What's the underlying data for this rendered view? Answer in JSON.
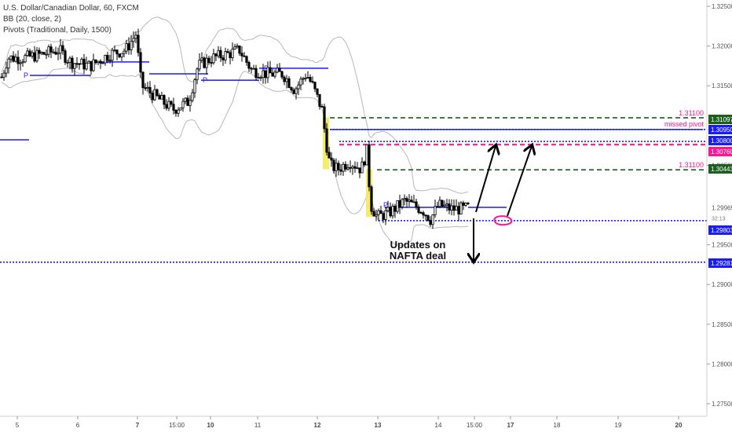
{
  "legend": {
    "symbol_line": "U.S. Dollar/Canadian Dollar, 60, FXCM",
    "bb_line": "BB (20, close, 2)",
    "pivots_line": "Pivots (Traditional, Daily, 1500)"
  },
  "chart_data": {
    "type": "candlestick",
    "symbol": "U.S. Dollar/Canadian Dollar",
    "timeframe": "60",
    "source": "FXCM",
    "y_axis": {
      "position": "right",
      "range": [
        1.2725,
        1.326
      ],
      "ticks": [
        "1.32500",
        "1.32000",
        "1.31500",
        "1.30500",
        "1.29500",
        "1.29000",
        "1.28500",
        "1.28000",
        "1.27500"
      ]
    },
    "x_axis": {
      "tick_labels": [
        "5",
        "6",
        "7",
        "15:00",
        "10",
        "11",
        "12",
        "13",
        "14",
        "15:00",
        "17",
        "18",
        "19",
        "20"
      ],
      "bold_labels": [
        "7",
        "10",
        "12",
        "13",
        "17",
        "20"
      ]
    },
    "current_price": "1.29965",
    "countdown": "32:13",
    "price_labels": [
      {
        "value": "1.31097",
        "color": "#1b5e20"
      },
      {
        "value": "1.30950",
        "color": "#1a1aff"
      },
      {
        "value": "1.30800",
        "color": "#1a1aff"
      },
      {
        "value": "1.30760",
        "color": "#ff1493"
      },
      {
        "value": "1.30443",
        "color": "#1b5e20"
      },
      {
        "value": "1.29803",
        "color": "#1a1aff"
      },
      {
        "value": "1.29281",
        "color": "#1a1aff"
      }
    ],
    "horizontal_levels": [
      {
        "price": 1.31097,
        "color": "#1b5e20",
        "style": "dashed"
      },
      {
        "price": 1.3095,
        "color": "#1a1aff",
        "style": "dotted"
      },
      {
        "price": 1.308,
        "color": "#1a1aff",
        "style": "dotted"
      },
      {
        "price": 1.3076,
        "color": "#ff1493",
        "style": "dashed"
      },
      {
        "price": 1.30443,
        "color": "#1b5e20",
        "style": "dashed"
      },
      {
        "price": 1.29803,
        "color": "#1a1aff",
        "style": "dotted"
      },
      {
        "price": 1.29281,
        "color": "#1a1aff",
        "style": "dotted"
      }
    ],
    "annotations": [
      {
        "text": "1.31100",
        "color": "#ff1493"
      },
      {
        "text": "missed pivot",
        "color": "#ff1493"
      },
      {
        "text": "1.31100",
        "color": "#ff1493"
      },
      {
        "text": "Updates on",
        "color": "#111111"
      },
      {
        "text": "NAFTA deal",
        "color": "#111111"
      }
    ],
    "pivot_marker": "P",
    "pivot_lines": [
      1.3163,
      1.318,
      1.3165,
      1.3157,
      1.3172,
      1.3095,
      1.2997
    ],
    "colors": {
      "up_candle": "#ffffff",
      "down_candle": "#000000",
      "bollinger": "#b8b8b8",
      "pivot": "#1a1aff",
      "highlight": "#f5e94a"
    },
    "grid": false
  }
}
